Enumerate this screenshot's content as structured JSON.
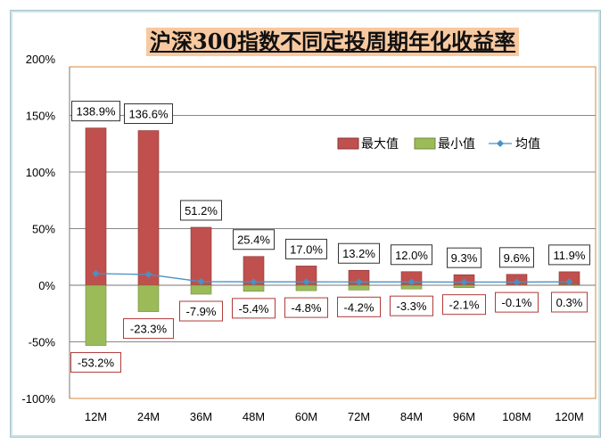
{
  "chart_data": {
    "type": "bar",
    "title": "沪深300指数不同定投周期年化收益率",
    "categories": [
      "12M",
      "24M",
      "36M",
      "48M",
      "60M",
      "72M",
      "84M",
      "96M",
      "108M",
      "120M"
    ],
    "series": [
      {
        "name": "最大值",
        "type": "bar",
        "color": "#c0504d",
        "values": [
          138.9,
          136.6,
          51.2,
          25.4,
          17.0,
          13.2,
          12.0,
          9.3,
          9.6,
          11.9
        ],
        "labels": [
          "138.9%",
          "136.6%",
          "51.2%",
          "25.4%",
          "17.0%",
          "13.2%",
          "12.0%",
          "9.3%",
          "9.6%",
          "11.9%"
        ]
      },
      {
        "name": "最小值",
        "type": "bar",
        "color": "#9bbb59",
        "values": [
          -53.2,
          -23.3,
          -7.9,
          -5.4,
          -4.8,
          -4.2,
          -3.3,
          -2.1,
          -0.1,
          0.3
        ],
        "labels": [
          "-53.2%",
          "-23.3%",
          "-7.9%",
          "-5.4%",
          "-4.8%",
          "-4.2%",
          "-3.3%",
          "-2.1%",
          "-0.1%",
          "0.3%"
        ]
      },
      {
        "name": "均值",
        "type": "line",
        "color": "#4a90c4",
        "values": [
          10.3,
          9.5,
          3.2,
          3.0,
          3.0,
          2.9,
          2.9,
          2.8,
          2.8,
          3.0
        ]
      }
    ],
    "ylim": [
      -100,
      200
    ],
    "yticks": [
      "-100%",
      "-50%",
      "0%",
      "50%",
      "100%",
      "150%",
      "200%"
    ],
    "ytick_values": [
      -100,
      -50,
      0,
      50,
      100,
      150,
      200
    ],
    "grid": true,
    "legend": "top-right"
  }
}
